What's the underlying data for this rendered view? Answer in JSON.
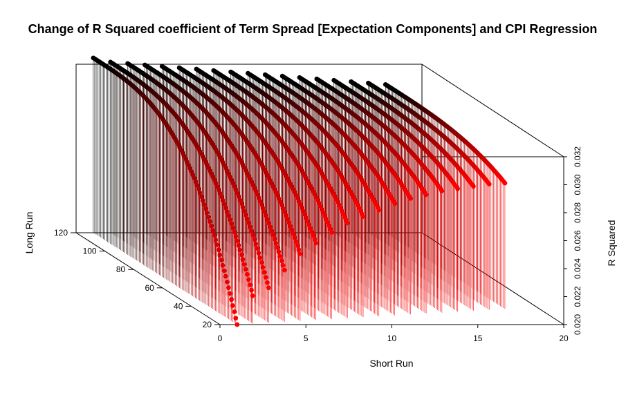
{
  "chart_data": {
    "type": "scatter3d",
    "title": "Change of R Squared coefficient of Term Spread [Expectation Components] and CPI Regression",
    "xlabel": "Short Run",
    "ylabel": "Long Run",
    "zlabel": "R Squared",
    "xlim": [
      0,
      20
    ],
    "ylim": [
      20,
      120
    ],
    "zlim": [
      0.02,
      0.032
    ],
    "x_ticks": [
      "0",
      "5",
      "10",
      "15",
      "20"
    ],
    "y_ticks": [
      "20",
      "40",
      "60",
      "80",
      "100",
      "120"
    ],
    "z_ticks": [
      "0.020",
      "0.022",
      "0.024",
      "0.026",
      "0.028",
      "0.030",
      "0.032"
    ],
    "type_hint": "h",
    "grid": false,
    "color_low": "#ff0000",
    "color_high": "#000000",
    "series": [
      {
        "x": 1,
        "long_run_range": [
          20,
          120
        ],
        "z_start": 0.02,
        "z_end": 0.0325
      },
      {
        "x": 2,
        "long_run_range": [
          21,
          120
        ],
        "z_start": 0.022,
        "z_end": 0.0322
      },
      {
        "x": 3,
        "long_run_range": [
          22,
          120
        ],
        "z_start": 0.0225,
        "z_end": 0.0321
      },
      {
        "x": 4,
        "long_run_range": [
          23,
          120
        ],
        "z_start": 0.0237,
        "z_end": 0.032
      },
      {
        "x": 5,
        "long_run_range": [
          24,
          120
        ],
        "z_start": 0.0248,
        "z_end": 0.0319
      },
      {
        "x": 6,
        "long_run_range": [
          25,
          120
        ],
        "z_start": 0.0255,
        "z_end": 0.0318
      },
      {
        "x": 7,
        "long_run_range": [
          26,
          120
        ],
        "z_start": 0.0262,
        "z_end": 0.0317
      },
      {
        "x": 8,
        "long_run_range": [
          27,
          120
        ],
        "z_start": 0.0268,
        "z_end": 0.0316
      },
      {
        "x": 9,
        "long_run_range": [
          28,
          120
        ],
        "z_start": 0.0272,
        "z_end": 0.0315
      },
      {
        "x": 10,
        "long_run_range": [
          29,
          120
        ],
        "z_start": 0.0276,
        "z_end": 0.0314
      },
      {
        "x": 11,
        "long_run_range": [
          30,
          120
        ],
        "z_start": 0.028,
        "z_end": 0.0313
      },
      {
        "x": 12,
        "long_run_range": [
          31,
          120
        ],
        "z_start": 0.0283,
        "z_end": 0.0312
      },
      {
        "x": 13,
        "long_run_range": [
          32,
          120
        ],
        "z_start": 0.0285,
        "z_end": 0.0311
      },
      {
        "x": 14,
        "long_run_range": [
          33,
          120
        ],
        "z_start": 0.0287,
        "z_end": 0.031
      },
      {
        "x": 15,
        "long_run_range": [
          34,
          120
        ],
        "z_start": 0.0288,
        "z_end": 0.0309
      },
      {
        "x": 16,
        "long_run_range": [
          35,
          120
        ],
        "z_start": 0.0289,
        "z_end": 0.0308
      },
      {
        "x": 17,
        "long_run_range": [
          36,
          120
        ],
        "z_start": 0.029,
        "z_end": 0.0307
      },
      {
        "x": 18,
        "long_run_range": [
          37,
          120
        ],
        "z_start": 0.029,
        "z_end": 0.0306
      }
    ]
  }
}
